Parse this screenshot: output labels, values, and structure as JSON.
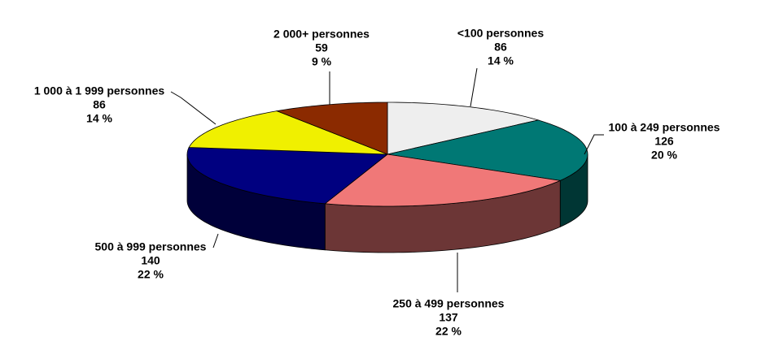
{
  "chart_data": {
    "type": "pie3d",
    "categories": [
      "<100 personnes",
      "100 à 249 personnes",
      "250 à 499 personnes",
      "500 à 999 personnes",
      "1 000 à 1 999 personnes",
      "2 000+ personnes"
    ],
    "values": [
      86,
      126,
      137,
      140,
      86,
      59
    ],
    "percentages": [
      14,
      20,
      22,
      22,
      14,
      9
    ],
    "percentage_labels": [
      "14 %",
      "20 %",
      "22 %",
      "22 %",
      "14 %",
      "9 %"
    ],
    "colors": [
      "#eeeeee",
      "#007874",
      "#f07878",
      "#000080",
      "#f0f000",
      "#8b2a00"
    ]
  }
}
